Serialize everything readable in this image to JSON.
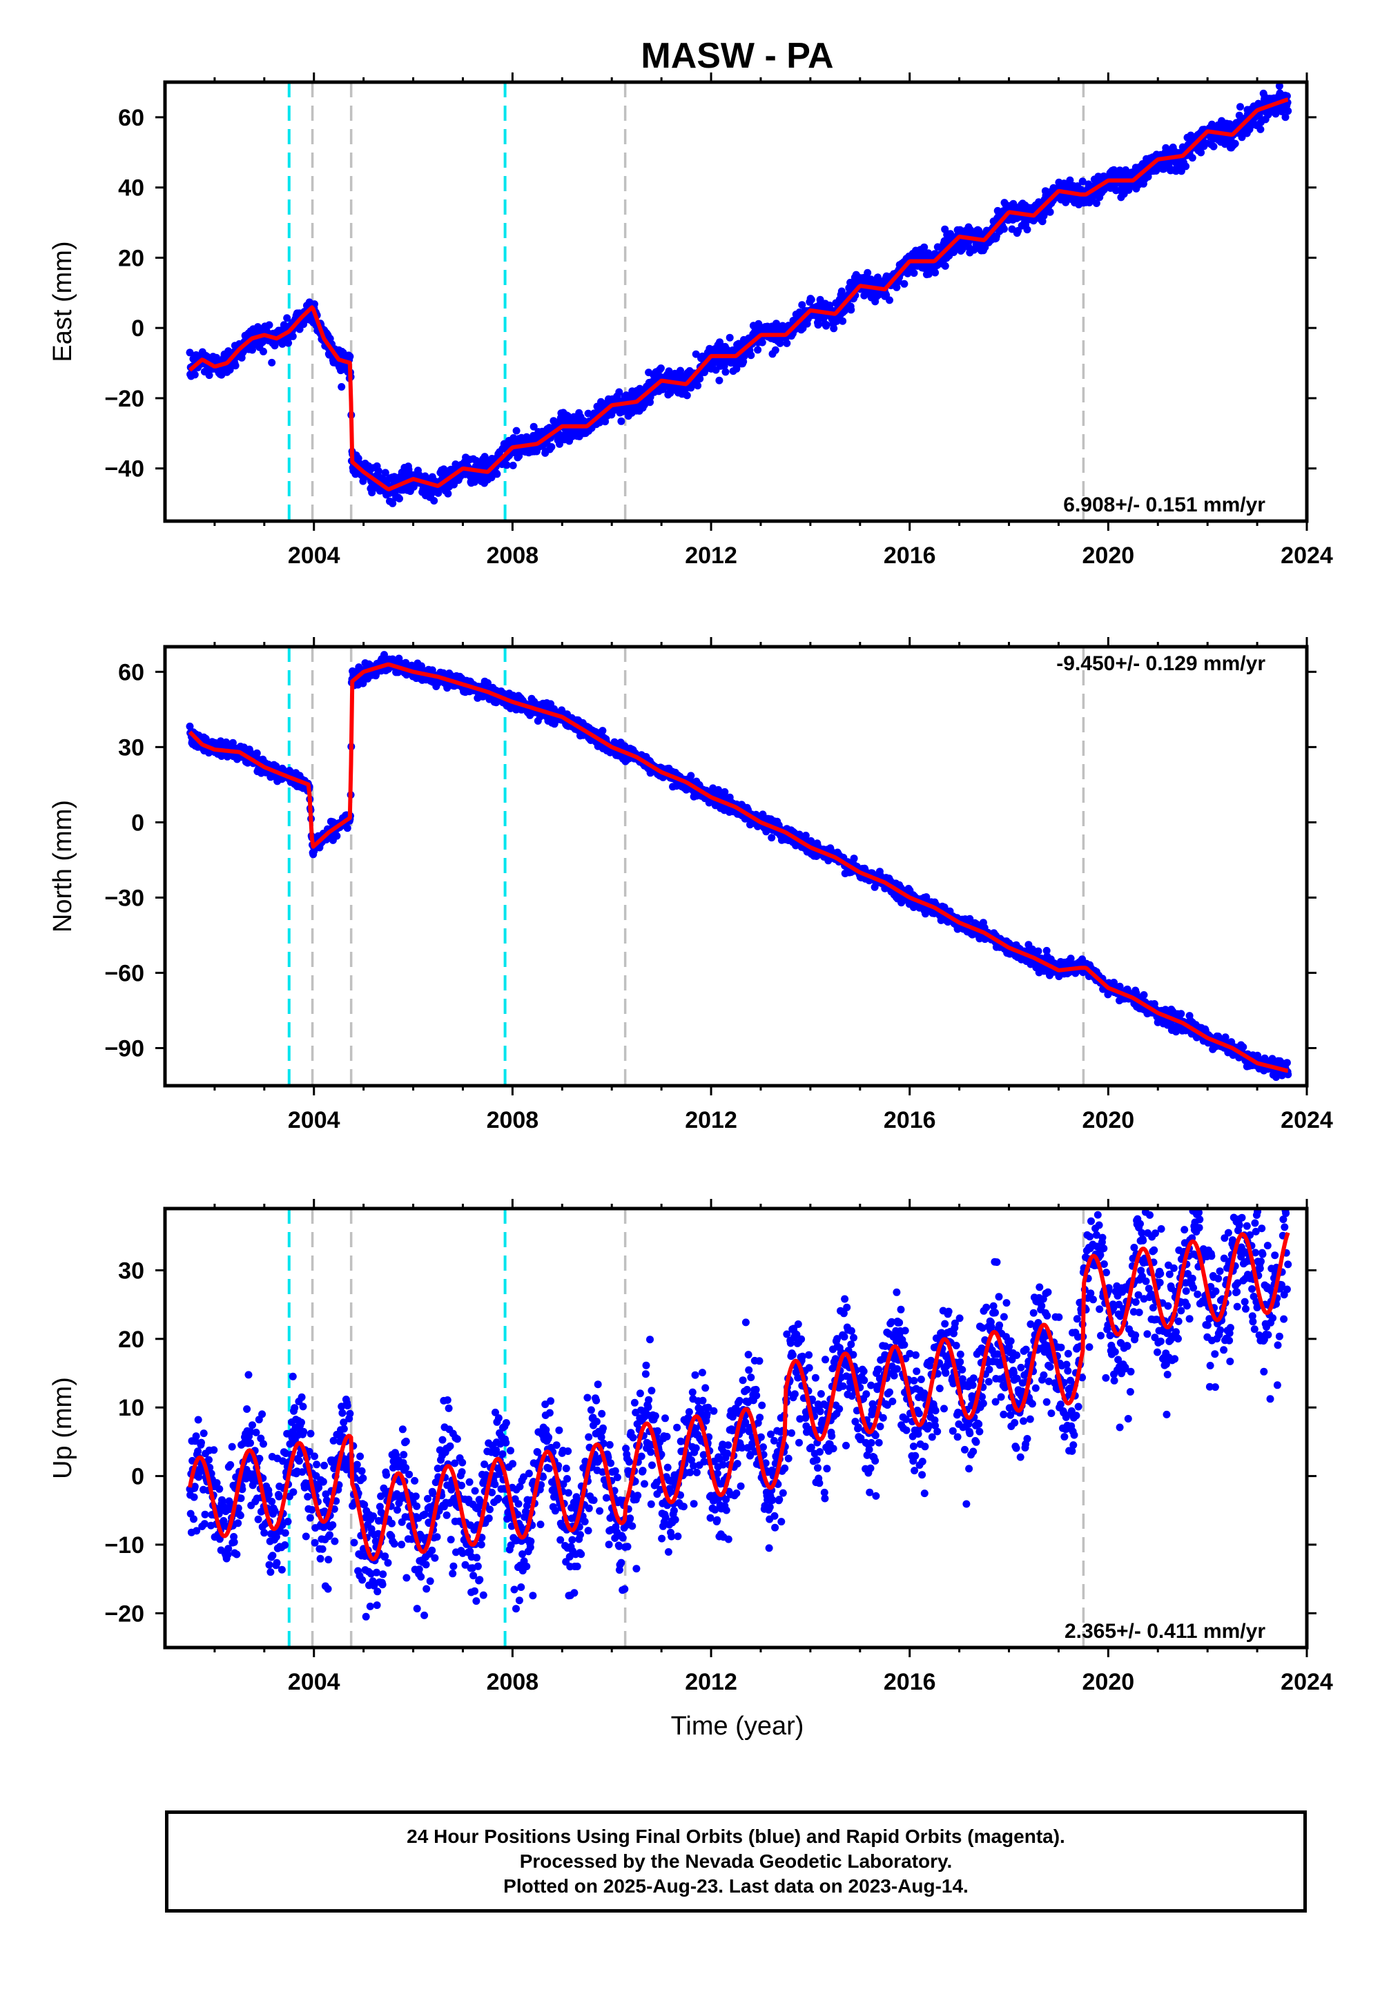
{
  "chart_data": {
    "title": "MASW - PA",
    "xlabel": "Time (year)",
    "type": "scatter",
    "xlim": [
      2001.0,
      2024.0
    ],
    "xticks": [
      2004,
      2008,
      2012,
      2016,
      2020,
      2024
    ],
    "colors": {
      "final_orbits": "#0000ff",
      "model": "#ff0000",
      "equipment_change": "#00e5ee",
      "other_event": "#c0c0c0"
    },
    "event_lines": [
      {
        "x": 2003.5,
        "type": "equipment_change"
      },
      {
        "x": 2003.97,
        "type": "other_event"
      },
      {
        "x": 2004.75,
        "type": "other_event"
      },
      {
        "x": 2007.85,
        "type": "equipment_change"
      },
      {
        "x": 2010.27,
        "type": "other_event"
      },
      {
        "x": 2019.5,
        "type": "other_event"
      }
    ],
    "panels": [
      {
        "id": "east",
        "ylabel": "East (mm)",
        "ylim": [
          -55,
          70
        ],
        "yticks": [
          -40,
          -20,
          0,
          20,
          40,
          60
        ],
        "rate": "6.908+/- 0.151 mm/yr",
        "rate_position": "bottom-right",
        "model_x": [
          2001.5,
          2001.75,
          2002.0,
          2002.25,
          2002.5,
          2002.75,
          2003.0,
          2003.25,
          2003.5,
          2003.75,
          2003.97,
          2004.2,
          2004.5,
          2004.74,
          2004.76,
          2005.0,
          2005.5,
          2006.0,
          2006.5,
          2007.0,
          2007.5,
          2008.0,
          2008.5,
          2009.0,
          2009.5,
          2010.0,
          2010.5,
          2011.0,
          2011.5,
          2012.0,
          2012.5,
          2013.0,
          2013.5,
          2014.0,
          2014.5,
          2015.0,
          2015.5,
          2016.0,
          2016.5,
          2017.0,
          2017.5,
          2018.0,
          2018.5,
          2019.0,
          2019.45,
          2019.55,
          2020.0,
          2020.5,
          2021.0,
          2021.5,
          2022.0,
          2022.5,
          2023.0,
          2023.6
        ],
        "model_y": [
          -12,
          -9,
          -11,
          -10,
          -6,
          -3,
          -2,
          -3,
          -1,
          3,
          6,
          -3,
          -9,
          -10,
          -38,
          -41,
          -46,
          -43,
          -45,
          -40,
          -41,
          -34,
          -33,
          -28,
          -28,
          -22,
          -21,
          -15,
          -16,
          -8,
          -8,
          -2,
          -2,
          5,
          4,
          12,
          11,
          19,
          19,
          26,
          25,
          33,
          32,
          39,
          38,
          38,
          42,
          42,
          48,
          49,
          56,
          55,
          62,
          65
        ],
        "noise": 1.8
      },
      {
        "id": "north",
        "ylabel": "North (mm)",
        "ylim": [
          -105,
          70
        ],
        "yticks": [
          -90,
          -60,
          -30,
          0,
          30,
          60
        ],
        "rate": "-9.450+/- 0.129 mm/yr",
        "rate_position": "top-right",
        "model_x": [
          2001.5,
          2001.75,
          2002.0,
          2002.5,
          2003.0,
          2003.5,
          2003.9,
          2003.97,
          2004.3,
          2004.74,
          2004.76,
          2005.0,
          2005.5,
          2006.0,
          2006.5,
          2007.0,
          2007.5,
          2008.0,
          2008.5,
          2009.0,
          2009.5,
          2010.0,
          2010.5,
          2011.0,
          2011.5,
          2012.0,
          2012.5,
          2013.0,
          2013.5,
          2014.0,
          2014.5,
          2015.0,
          2015.5,
          2016.0,
          2016.5,
          2017.0,
          2017.5,
          2018.0,
          2018.5,
          2019.0,
          2019.45,
          2019.55,
          2020.0,
          2020.5,
          2021.0,
          2021.5,
          2022.0,
          2022.5,
          2023.0,
          2023.6
        ],
        "model_y": [
          36,
          31,
          29,
          28,
          22,
          18,
          15,
          -10,
          -4,
          2,
          56,
          60,
          63,
          60,
          58,
          55,
          52,
          48,
          45,
          42,
          36,
          30,
          26,
          20,
          16,
          10,
          6,
          0,
          -4,
          -10,
          -14,
          -20,
          -24,
          -30,
          -34,
          -40,
          -44,
          -50,
          -54,
          -59,
          -58,
          -58,
          -66,
          -70,
          -76,
          -80,
          -86,
          -90,
          -96,
          -99
        ],
        "noise": 1.5
      },
      {
        "id": "up",
        "ylabel": "Up (mm)",
        "ylim": [
          -25,
          39
        ],
        "yticks": [
          -20,
          -10,
          0,
          10,
          20,
          30
        ],
        "rate": "2.365+/- 0.411 mm/yr",
        "rate_position": "bottom-right",
        "model": {
          "offsets": [
            [
              2001.5,
              -3.5
            ],
            [
              2004.75,
              -10
            ],
            [
              2010.27,
              -8
            ],
            [
              2013.5,
              -2
            ],
            [
              2019.5,
              7
            ]
          ],
          "slope_mm_per_yr": 1.05,
          "annual_amplitude_mm": 6.0,
          "peak_phase_yr": 0.7
        },
        "noise": 4.0
      }
    ]
  },
  "footer": {
    "line1": "24 Hour Positions Using Final Orbits (blue) and Rapid Orbits (magenta).",
    "line2": "Processed by the Nevada Geodetic Laboratory.",
    "line3": "Plotted on 2025-Aug-23. Last data on 2023-Aug-14."
  }
}
